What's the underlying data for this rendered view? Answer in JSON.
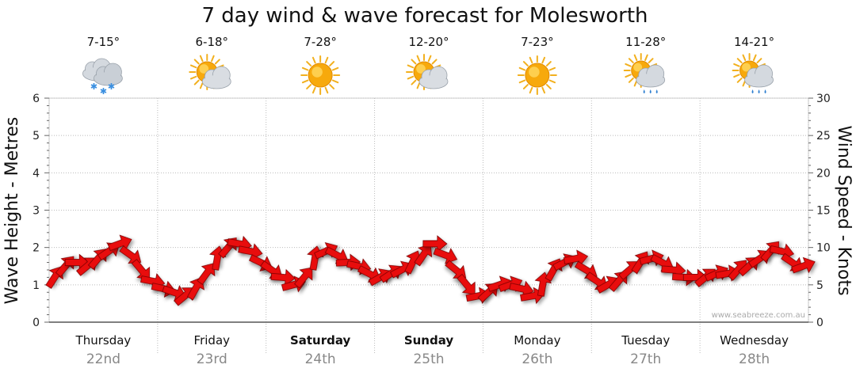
{
  "chart_data": {
    "type": "line",
    "title": "7 day wind & wave forecast for Molesworth",
    "ylabel_left": "Wave Height - Metres",
    "ylabel_right": "Wind Speed - Knots",
    "ylim_left": [
      0,
      6
    ],
    "ylim_right": [
      0,
      30
    ],
    "yticks_left": [
      "0",
      "1",
      "2",
      "3",
      "4",
      "5",
      "6"
    ],
    "yticks_right": [
      "0",
      "5",
      "10",
      "15",
      "20",
      "25",
      "30"
    ],
    "credit": "www.seabreeze.com.au",
    "days": [
      {
        "name": "Thursday",
        "date": "22nd",
        "temp": "7-15°",
        "icon": "snow-cloud-icon",
        "bold": false
      },
      {
        "name": "Friday",
        "date": "23rd",
        "temp": "6-18°",
        "icon": "sun-cloud-icon",
        "bold": false
      },
      {
        "name": "Saturday",
        "date": "24th",
        "temp": "7-28°",
        "icon": "sun-icon",
        "bold": true
      },
      {
        "name": "Sunday",
        "date": "25th",
        "temp": "12-20°",
        "icon": "sun-cloud-icon",
        "bold": true
      },
      {
        "name": "Monday",
        "date": "26th",
        "temp": "7-23°",
        "icon": "sun-icon",
        "bold": false
      },
      {
        "name": "Tuesday",
        "date": "27th",
        "temp": "11-28°",
        "icon": "sun-cloud-rain-icon",
        "bold": false
      },
      {
        "name": "Wednesday",
        "date": "28th",
        "temp": "14-21°",
        "icon": "sun-cloud-rain-icon",
        "bold": false
      }
    ],
    "series": [
      {
        "name": "Wind Speed",
        "axis": "right",
        "color": "#e81010",
        "x": [
          0,
          0.1,
          0.2,
          0.3,
          0.4,
          0.5,
          0.6,
          0.7,
          0.8,
          0.9,
          1.0,
          1.1,
          1.2,
          1.3,
          1.4,
          1.5,
          1.6,
          1.7,
          1.8,
          1.9,
          2.0,
          2.1,
          2.2,
          2.3,
          2.4,
          2.5,
          2.6,
          2.7,
          2.8,
          2.9,
          3.0,
          3.1,
          3.2,
          3.3,
          3.4,
          3.5,
          3.6,
          3.7,
          3.8,
          3.9,
          4.0,
          4.1,
          4.2,
          4.3,
          4.4,
          4.5,
          4.6,
          4.7,
          4.8,
          4.9,
          5.0,
          5.1,
          5.2,
          5.3,
          5.4,
          5.5,
          5.6,
          5.7,
          5.8,
          5.9,
          6.0,
          6.1,
          6.2,
          6.3,
          6.4,
          6.5,
          6.6,
          6.7,
          6.8,
          6.9
        ],
        "values": [
          6,
          7.5,
          8,
          7.5,
          8.5,
          9.5,
          10.5,
          9,
          7,
          5.5,
          4.5,
          4,
          3.5,
          4.5,
          6.5,
          8.5,
          10,
          10.5,
          9.5,
          8,
          7,
          6,
          5,
          6,
          8.5,
          9.5,
          9,
          8,
          7.5,
          6.5,
          6,
          6.5,
          7,
          8,
          9,
          10.5,
          9,
          7,
          5,
          3.5,
          4,
          5,
          5,
          4.5,
          3.5,
          5,
          7,
          8,
          8.5,
          7,
          5.5,
          5,
          5.5,
          7,
          8,
          8.5,
          8,
          7,
          6,
          6,
          6,
          6.5,
          6.5,
          7,
          7.5,
          8.5,
          9.5,
          9.5,
          8,
          7.5
        ]
      }
    ]
  }
}
